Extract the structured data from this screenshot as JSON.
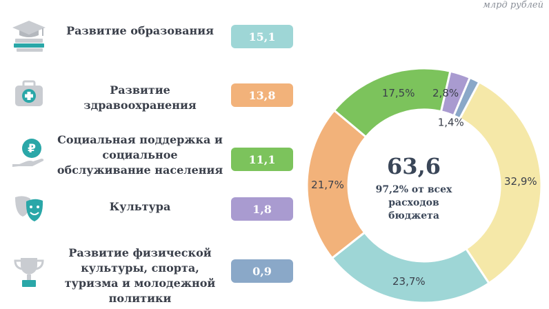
{
  "unit": "млрд рублей",
  "colors": {
    "education": "#9ed6d6",
    "health": "#f2b27a",
    "social": "#7cc35c",
    "culture": "#a99bd0",
    "sport": "#8aa8c8",
    "other": "#f5e8a8",
    "icon_teal": "#2aa7a8",
    "icon_grey": "#c9ccd1"
  },
  "categories": [
    {
      "label": "Развитие образования",
      "value": "15,1",
      "color_key": "education",
      "icon": "graduation-cap-books-icon"
    },
    {
      "label": "Развитие здравоохранения",
      "value": "13,8",
      "color_key": "health",
      "icon": "medical-kit-icon"
    },
    {
      "label": "Социальная поддержка и социальное обслуживание населения",
      "value": "11,1",
      "color_key": "social",
      "icon": "ruble-coin-hand-icon"
    },
    {
      "label": "Культура",
      "value": "1,8",
      "color_key": "culture",
      "icon": "theatre-masks-icon"
    },
    {
      "label": "Развитие физической культуры, спорта, туризма и молодежной политики",
      "value": "0,9",
      "color_key": "sport",
      "icon": "trophy-cup-icon"
    }
  ],
  "chart_data": {
    "type": "pie",
    "variant": "donut",
    "center_value": "63,6",
    "center_note": "97,2% от всех расходов бюджета",
    "slices": [
      {
        "label": "32,9%",
        "value": 32.9,
        "color_key": "other"
      },
      {
        "label": "23,7%",
        "value": 23.7,
        "color_key": "education"
      },
      {
        "label": "21,7%",
        "value": 21.7,
        "color_key": "health"
      },
      {
        "label": "17,5%",
        "value": 17.5,
        "color_key": "social"
      },
      {
        "label": "2,8%",
        "value": 2.8,
        "color_key": "culture"
      },
      {
        "label": "1,4%",
        "value": 1.4,
        "color_key": "sport"
      }
    ]
  }
}
